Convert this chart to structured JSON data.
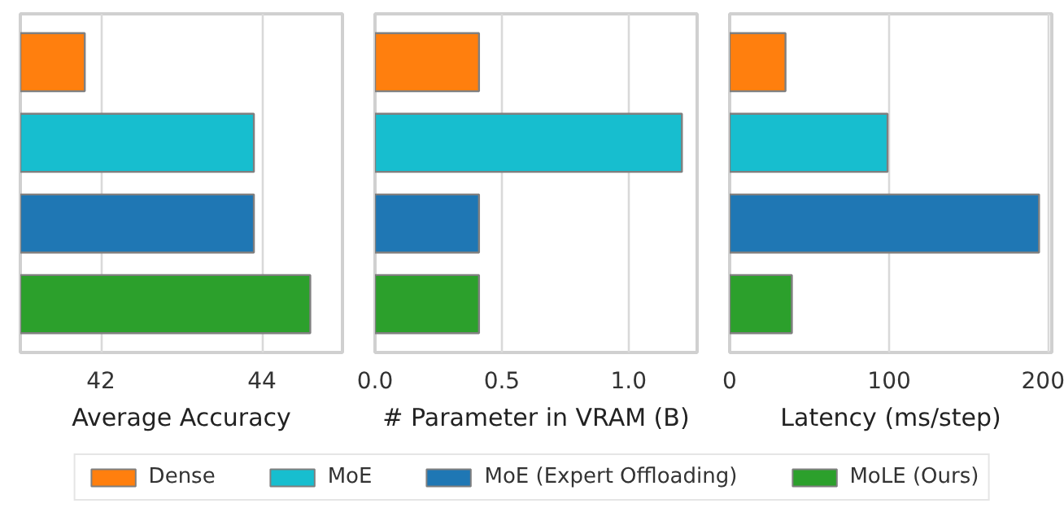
{
  "chart_data": [
    {
      "type": "bar",
      "orientation": "horizontal",
      "categories": [
        null,
        null,
        null,
        null
      ],
      "series": [
        {
          "name": "Dense",
          "color": "#ff7f0e",
          "values": [
            41.8,
            null,
            null,
            null
          ]
        },
        {
          "name": "MoE",
          "color": "#17becf",
          "values": [
            null,
            43.9,
            null,
            null
          ]
        },
        {
          "name": "MoE (Expert Offloading)",
          "color": "#1f77b4",
          "values": [
            null,
            null,
            43.9,
            null
          ]
        },
        {
          "name": "MoLE (Ours)",
          "color": "#2ca02c",
          "values": [
            null,
            null,
            null,
            44.6
          ]
        }
      ],
      "xlabel": "Average Accuracy",
      "xlim": [
        41,
        45
      ],
      "xticks": [
        42,
        44
      ],
      "grid": "x",
      "tick_labels": "x",
      "legend": "bottom"
    },
    {
      "type": "bar",
      "orientation": "horizontal",
      "categories": [
        null,
        null,
        null,
        null
      ],
      "series": [
        {
          "color": "#ff7f0e",
          "values": [
            0.41,
            null,
            null,
            null
          ]
        },
        {
          "color": "#17becf",
          "values": [
            null,
            1.21,
            null,
            null
          ]
        },
        {
          "color": "#1f77b4",
          "values": [
            null,
            null,
            0.41,
            null
          ]
        },
        {
          "color": "#2ca02c",
          "values": [
            null,
            null,
            null,
            0.41
          ]
        }
      ],
      "xlabel": "# Parameter in VRAM (B)",
      "xlim": [
        0,
        1.27
      ],
      "xticks": [
        {
          "value": 0,
          "label": "0.0"
        },
        0.5,
        {
          "value": 1,
          "label": "1.0"
        }
      ],
      "grid": "x",
      "tick_labels": "x"
    },
    {
      "type": "bar",
      "orientation": "horizontal",
      "categories": [
        null,
        null,
        null,
        null
      ],
      "series": [
        {
          "color": "#ff7f0e",
          "values": [
            35,
            null,
            null,
            null
          ]
        },
        {
          "color": "#17becf",
          "values": [
            null,
            99,
            null,
            null
          ]
        },
        {
          "color": "#1f77b4",
          "values": [
            null,
            null,
            194,
            null
          ]
        },
        {
          "color": "#2ca02c",
          "values": [
            null,
            null,
            null,
            39
          ]
        }
      ],
      "xlabel": "Latency (ms/step)",
      "xlim": [
        0,
        202
      ],
      "xticks": [
        0,
        100,
        200
      ],
      "grid": "x",
      "tick_labels": "x"
    }
  ]
}
